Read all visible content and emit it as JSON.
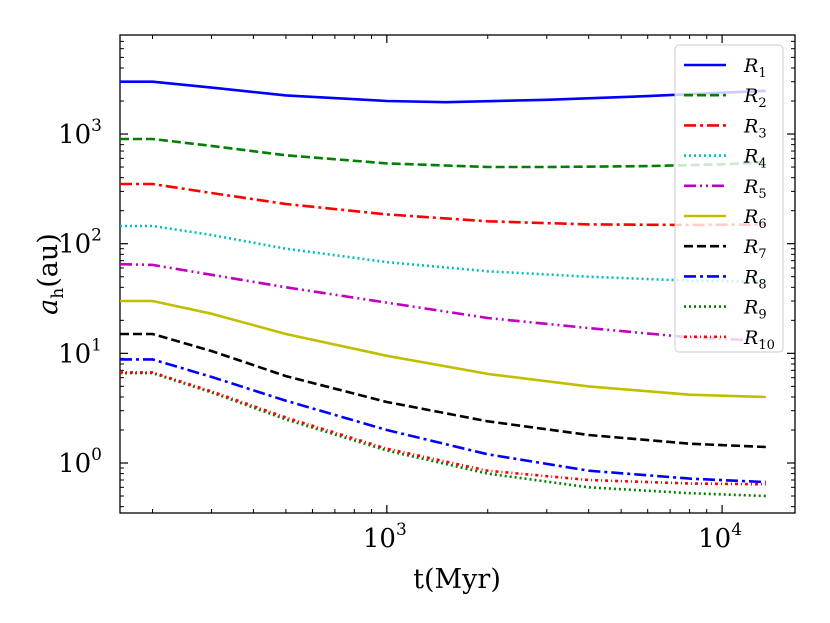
{
  "chart_data": {
    "type": "line",
    "xscale": "log",
    "yscale": "log",
    "xlabel": "t(Myr)",
    "ylabel_main": "a",
    "ylabel_sub": "h",
    "ylabel_unit": "(au)",
    "xlim": [
      160,
      16500
    ],
    "ylim": [
      0.35,
      8000
    ],
    "xticks": [
      {
        "value": 1000,
        "base": "10",
        "exp": "3"
      },
      {
        "value": 10000,
        "base": "10",
        "exp": "4"
      }
    ],
    "yticks": [
      {
        "value": 1,
        "base": "10",
        "exp": "0"
      },
      {
        "value": 10,
        "base": "10",
        "exp": "1"
      },
      {
        "value": 100,
        "base": "10",
        "exp": "2"
      },
      {
        "value": 1000,
        "base": "10",
        "exp": "3"
      }
    ],
    "legend_position": "upper-right",
    "series": [
      {
        "name": "R",
        "sub": "1",
        "color": "#0000ff",
        "dash": "",
        "x": [
          160,
          200,
          300,
          500,
          1000,
          1500,
          3000,
          6000,
          10000,
          13500
        ],
        "y": [
          3000,
          3000,
          2650,
          2250,
          2000,
          1950,
          2050,
          2220,
          2380,
          2480
        ]
      },
      {
        "name": "R",
        "sub": "2",
        "color": "#008000",
        "dash": "9,4",
        "x": [
          160,
          200,
          300,
          500,
          1000,
          2000,
          3000,
          6000,
          10000,
          13500
        ],
        "y": [
          900,
          900,
          780,
          640,
          540,
          500,
          500,
          510,
          530,
          550
        ]
      },
      {
        "name": "R",
        "sub": "3",
        "color": "#ff0000",
        "dash": "12,4,3,4",
        "x": [
          160,
          200,
          300,
          500,
          1000,
          2000,
          4000,
          8000,
          13500
        ],
        "y": [
          350,
          350,
          290,
          230,
          185,
          160,
          150,
          148,
          150
        ]
      },
      {
        "name": "R",
        "sub": "4",
        "color": "#00bfbf",
        "dash": "2,3",
        "x": [
          160,
          200,
          300,
          500,
          1000,
          2000,
          4000,
          8000,
          13500
        ],
        "y": [
          145,
          145,
          120,
          90,
          68,
          56,
          50,
          46,
          45
        ]
      },
      {
        "name": "R",
        "sub": "5",
        "color": "#bf00bf",
        "dash": "12,4,2,4,2,4",
        "x": [
          160,
          200,
          300,
          500,
          1000,
          2000,
          4000,
          8000,
          13500
        ],
        "y": [
          65,
          64,
          52,
          40,
          29,
          21,
          17,
          14,
          13
        ]
      },
      {
        "name": "R",
        "sub": "6",
        "color": "#bfbf00",
        "dash": "",
        "x": [
          160,
          200,
          300,
          500,
          1000,
          2000,
          4000,
          8000,
          13500
        ],
        "y": [
          30,
          30,
          23,
          15,
          9.5,
          6.5,
          5,
          4.2,
          4
        ]
      },
      {
        "name": "R",
        "sub": "7",
        "color": "#000000",
        "dash": "9,4",
        "x": [
          160,
          200,
          300,
          500,
          1000,
          2000,
          4000,
          8000,
          13500
        ],
        "y": [
          15,
          15,
          10.5,
          6.2,
          3.6,
          2.4,
          1.8,
          1.5,
          1.4
        ]
      },
      {
        "name": "R",
        "sub": "8",
        "color": "#0000ff",
        "dash": "12,4,3,4",
        "x": [
          160,
          200,
          300,
          500,
          1000,
          2000,
          4000,
          8000,
          13500
        ],
        "y": [
          8.8,
          8.8,
          6.1,
          3.7,
          2.0,
          1.2,
          0.85,
          0.72,
          0.67
        ]
      },
      {
        "name": "R",
        "sub": "9",
        "color": "#008000",
        "dash": "2,3",
        "x": [
          160,
          200,
          300,
          500,
          1000,
          2000,
          4000,
          8000,
          13500
        ],
        "y": [
          6.6,
          6.6,
          4.4,
          2.5,
          1.3,
          0.8,
          0.6,
          0.53,
          0.5
        ]
      },
      {
        "name": "R",
        "sub": "10",
        "color": "#ff0000",
        "dash": "3,3,1,3",
        "x": [
          160,
          200,
          300,
          500,
          1000,
          2000,
          4000,
          8000,
          13500
        ],
        "y": [
          6.7,
          6.7,
          4.5,
          2.6,
          1.35,
          0.85,
          0.7,
          0.65,
          0.64
        ]
      }
    ]
  }
}
